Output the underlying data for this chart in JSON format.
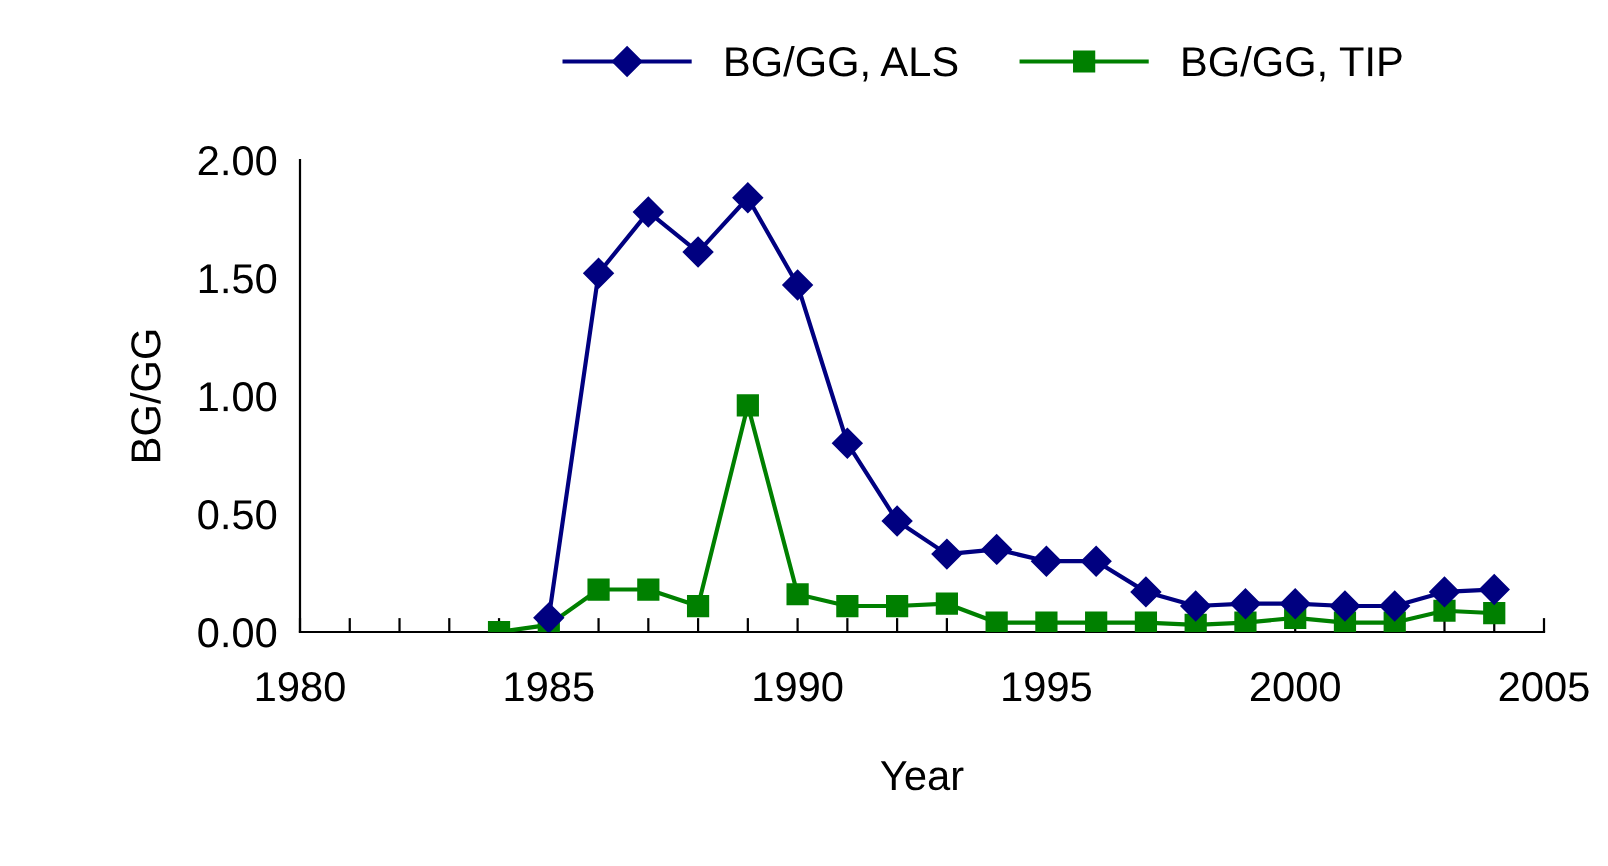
{
  "chart_data": {
    "type": "line",
    "xlabel": "Year",
    "ylabel": "BG/GG",
    "x": [
      1984,
      1985,
      1986,
      1987,
      1988,
      1989,
      1990,
      1991,
      1992,
      1993,
      1994,
      1995,
      1996,
      1997,
      1998,
      1999,
      2000,
      2001,
      2002,
      2003,
      2004
    ],
    "series": [
      {
        "name": "BG/GG, ALS",
        "color": "#000080",
        "marker": "diamond",
        "values": [
          null,
          0.06,
          1.52,
          1.78,
          1.61,
          1.84,
          1.47,
          0.8,
          0.47,
          0.33,
          0.35,
          0.3,
          0.3,
          0.17,
          0.11,
          0.12,
          0.12,
          0.11,
          0.11,
          0.17,
          0.18
        ]
      },
      {
        "name": "BG/GG, TIP",
        "color": "#008000",
        "marker": "square",
        "values": [
          0.0,
          0.03,
          0.18,
          0.18,
          0.11,
          0.96,
          0.16,
          0.11,
          0.11,
          0.12,
          0.04,
          0.04,
          0.04,
          0.04,
          0.03,
          0.04,
          0.06,
          0.04,
          0.04,
          0.09,
          0.08
        ]
      }
    ],
    "xlim": [
      1980,
      2005
    ],
    "xticks": [
      1980,
      {
        "value": 1981,
        "label": null
      },
      {
        "value": 1982,
        "label": null
      },
      {
        "value": 1983,
        "label": null
      },
      {
        "value": 1984,
        "label": null
      },
      1985,
      {
        "value": 1986,
        "label": null
      },
      {
        "value": 1987,
        "label": null
      },
      {
        "value": 1988,
        "label": null
      },
      {
        "value": 1989,
        "label": null
      },
      1990,
      {
        "value": 1991,
        "label": null
      },
      {
        "value": 1992,
        "label": null
      },
      {
        "value": 1993,
        "label": null
      },
      {
        "value": 1994,
        "label": null
      },
      1995,
      {
        "value": 1996,
        "label": null
      },
      {
        "value": 1997,
        "label": null
      },
      {
        "value": 1998,
        "label": null
      },
      {
        "value": 1999,
        "label": null
      },
      2000,
      {
        "value": 2001,
        "label": null
      },
      {
        "value": 2002,
        "label": null
      },
      {
        "value": 2003,
        "label": null
      },
      {
        "value": 2004,
        "label": null
      },
      2005
    ],
    "ylim": [
      0,
      2.0
    ],
    "yticks": [
      {
        "value": 0,
        "label": "0.00"
      },
      {
        "value": 0.5,
        "label": "0.50"
      },
      {
        "value": 1.0,
        "label": "1.00"
      },
      {
        "value": 1.5,
        "label": "1.50"
      },
      {
        "value": 2.0,
        "label": "2.00"
      }
    ],
    "grid": false,
    "legend": "top"
  }
}
